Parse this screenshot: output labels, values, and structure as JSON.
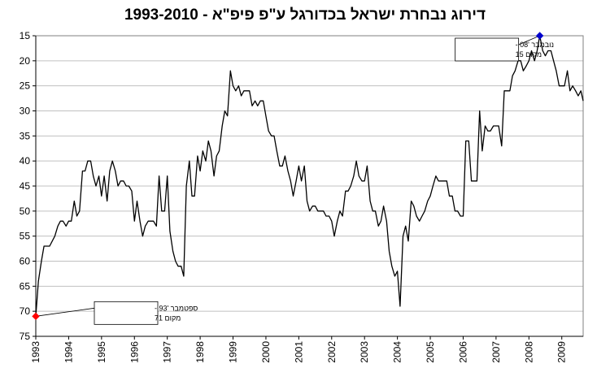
{
  "chart_data": {
    "type": "line",
    "title": "דירוג נבחרת ישראל בכדורגל ע\"פ פיפ\"א - 1993-2010",
    "xlabel": "",
    "ylabel": "",
    "y_axis": {
      "min": 15,
      "max": 75,
      "step": 5,
      "inverted": true,
      "ticks": [
        "15",
        "20",
        "25",
        "30",
        "35",
        "40",
        "45",
        "50",
        "55",
        "60",
        "65",
        "70",
        "75"
      ]
    },
    "x_axis": {
      "min": 1993.0,
      "max": 2009.65,
      "ticks": [
        "1993",
        "1994",
        "1995",
        "1996",
        "1997",
        "1998",
        "1999",
        "2000",
        "2001",
        "2002",
        "2003",
        "2004",
        "2005",
        "2006",
        "2007",
        "2008",
        "2009"
      ]
    },
    "grid": {
      "horizontal": true,
      "vertical": false
    },
    "colors": {
      "line": "#000000",
      "grid": "#c0c0c0",
      "min_marker": "#ff0000",
      "max_marker": "#0000cc"
    },
    "series": [
      {
        "points": [
          [
            1993.0,
            71
          ],
          [
            1993.08,
            64
          ],
          [
            1993.17,
            60
          ],
          [
            1993.25,
            57
          ],
          [
            1993.42,
            57
          ],
          [
            1993.58,
            55
          ],
          [
            1993.67,
            53
          ],
          [
            1993.75,
            52
          ],
          [
            1993.83,
            52
          ],
          [
            1993.92,
            53
          ],
          [
            1994.0,
            52
          ],
          [
            1994.08,
            52
          ],
          [
            1994.17,
            48
          ],
          [
            1994.25,
            51
          ],
          [
            1994.33,
            50
          ],
          [
            1994.42,
            42
          ],
          [
            1994.5,
            42
          ],
          [
            1994.58,
            40
          ],
          [
            1994.67,
            40
          ],
          [
            1994.75,
            43
          ],
          [
            1994.83,
            45
          ],
          [
            1994.92,
            43
          ],
          [
            1995.0,
            47
          ],
          [
            1995.08,
            43
          ],
          [
            1995.17,
            48
          ],
          [
            1995.25,
            42
          ],
          [
            1995.33,
            40
          ],
          [
            1995.42,
            42
          ],
          [
            1995.5,
            45
          ],
          [
            1995.58,
            44
          ],
          [
            1995.67,
            44
          ],
          [
            1995.75,
            45
          ],
          [
            1995.83,
            45
          ],
          [
            1995.92,
            46
          ],
          [
            1996.0,
            52
          ],
          [
            1996.08,
            48
          ],
          [
            1996.17,
            52
          ],
          [
            1996.25,
            55
          ],
          [
            1996.33,
            53
          ],
          [
            1996.42,
            52
          ],
          [
            1996.5,
            52
          ],
          [
            1996.58,
            52
          ],
          [
            1996.67,
            53
          ],
          [
            1996.75,
            43
          ],
          [
            1996.83,
            50
          ],
          [
            1996.92,
            50
          ],
          [
            1997.0,
            43
          ],
          [
            1997.08,
            54
          ],
          [
            1997.17,
            58
          ],
          [
            1997.25,
            60
          ],
          [
            1997.33,
            61
          ],
          [
            1997.42,
            61
          ],
          [
            1997.5,
            63
          ],
          [
            1997.58,
            45
          ],
          [
            1997.67,
            40
          ],
          [
            1997.75,
            47
          ],
          [
            1997.83,
            47
          ],
          [
            1997.92,
            39
          ],
          [
            1998.0,
            42
          ],
          [
            1998.08,
            38
          ],
          [
            1998.17,
            40
          ],
          [
            1998.25,
            36
          ],
          [
            1998.33,
            38
          ],
          [
            1998.42,
            43
          ],
          [
            1998.5,
            39
          ],
          [
            1998.58,
            38
          ],
          [
            1998.67,
            33
          ],
          [
            1998.75,
            30
          ],
          [
            1998.83,
            31
          ],
          [
            1998.92,
            22
          ],
          [
            1999.0,
            25
          ],
          [
            1999.08,
            26
          ],
          [
            1999.17,
            25
          ],
          [
            1999.25,
            27
          ],
          [
            1999.33,
            26
          ],
          [
            1999.42,
            26
          ],
          [
            1999.5,
            26
          ],
          [
            1999.58,
            29
          ],
          [
            1999.67,
            28
          ],
          [
            1999.75,
            29
          ],
          [
            1999.83,
            28
          ],
          [
            1999.92,
            28
          ],
          [
            2000.0,
            31
          ],
          [
            2000.08,
            34
          ],
          [
            2000.17,
            35
          ],
          [
            2000.25,
            35
          ],
          [
            2000.33,
            38
          ],
          [
            2000.42,
            41
          ],
          [
            2000.5,
            41
          ],
          [
            2000.58,
            39
          ],
          [
            2000.67,
            42
          ],
          [
            2000.75,
            44
          ],
          [
            2000.83,
            47
          ],
          [
            2000.92,
            44
          ],
          [
            2001.0,
            41
          ],
          [
            2001.08,
            44
          ],
          [
            2001.17,
            41
          ],
          [
            2001.25,
            48
          ],
          [
            2001.33,
            50
          ],
          [
            2001.42,
            49
          ],
          [
            2001.5,
            49
          ],
          [
            2001.58,
            50
          ],
          [
            2001.67,
            50
          ],
          [
            2001.75,
            50
          ],
          [
            2001.83,
            51
          ],
          [
            2001.92,
            51
          ],
          [
            2002.0,
            52
          ],
          [
            2002.08,
            55
          ],
          [
            2002.17,
            52
          ],
          [
            2002.25,
            50
          ],
          [
            2002.33,
            51
          ],
          [
            2002.42,
            46
          ],
          [
            2002.5,
            46
          ],
          [
            2002.58,
            45
          ],
          [
            2002.67,
            43
          ],
          [
            2002.75,
            40
          ],
          [
            2002.83,
            43
          ],
          [
            2002.92,
            44
          ],
          [
            2003.0,
            44
          ],
          [
            2003.08,
            41
          ],
          [
            2003.17,
            48
          ],
          [
            2003.25,
            50
          ],
          [
            2003.33,
            50
          ],
          [
            2003.42,
            53
          ],
          [
            2003.5,
            52
          ],
          [
            2003.58,
            49
          ],
          [
            2003.67,
            52
          ],
          [
            2003.75,
            58
          ],
          [
            2003.83,
            61
          ],
          [
            2003.92,
            63
          ],
          [
            2004.0,
            62
          ],
          [
            2004.08,
            69
          ],
          [
            2004.17,
            55
          ],
          [
            2004.25,
            53
          ],
          [
            2004.33,
            56
          ],
          [
            2004.42,
            48
          ],
          [
            2004.5,
            49
          ],
          [
            2004.58,
            51
          ],
          [
            2004.67,
            52
          ],
          [
            2004.75,
            51
          ],
          [
            2004.83,
            50
          ],
          [
            2004.92,
            48
          ],
          [
            2005.0,
            47
          ],
          [
            2005.08,
            45
          ],
          [
            2005.17,
            43
          ],
          [
            2005.25,
            44
          ],
          [
            2005.33,
            44
          ],
          [
            2005.42,
            44
          ],
          [
            2005.5,
            44
          ],
          [
            2005.58,
            47
          ],
          [
            2005.67,
            47
          ],
          [
            2005.75,
            50
          ],
          [
            2005.83,
            50
          ],
          [
            2005.92,
            51
          ],
          [
            2006.0,
            51
          ],
          [
            2006.08,
            36
          ],
          [
            2006.17,
            36
          ],
          [
            2006.25,
            44
          ],
          [
            2006.33,
            44
          ],
          [
            2006.42,
            44
          ],
          [
            2006.5,
            30
          ],
          [
            2006.58,
            38
          ],
          [
            2006.67,
            33
          ],
          [
            2006.75,
            34
          ],
          [
            2006.83,
            34
          ],
          [
            2006.92,
            33
          ],
          [
            2007.0,
            33
          ],
          [
            2007.08,
            33
          ],
          [
            2007.17,
            37
          ],
          [
            2007.25,
            26
          ],
          [
            2007.33,
            26
          ],
          [
            2007.42,
            26
          ],
          [
            2007.5,
            23
          ],
          [
            2007.58,
            22
          ],
          [
            2007.67,
            20
          ],
          [
            2007.75,
            20
          ],
          [
            2007.83,
            22
          ],
          [
            2007.92,
            21
          ],
          [
            2008.0,
            20
          ],
          [
            2008.08,
            18
          ],
          [
            2008.17,
            20
          ],
          [
            2008.25,
            18
          ],
          [
            2008.33,
            15
          ],
          [
            2008.42,
            18
          ],
          [
            2008.5,
            19
          ],
          [
            2008.58,
            18
          ],
          [
            2008.67,
            18
          ],
          [
            2008.75,
            20
          ],
          [
            2008.83,
            22
          ],
          [
            2008.92,
            25
          ],
          [
            2009.0,
            25
          ],
          [
            2009.08,
            25
          ],
          [
            2009.17,
            22
          ],
          [
            2009.25,
            26
          ],
          [
            2009.33,
            25
          ],
          [
            2009.42,
            26
          ],
          [
            2009.5,
            27
          ],
          [
            2009.58,
            26
          ],
          [
            2009.65,
            28
          ]
        ]
      }
    ],
    "annotations": [
      {
        "x": 1993.0,
        "y": 71,
        "marker": "min",
        "line1": "ספטמבר '93 -",
        "line2": "מקום 71"
      },
      {
        "x": 2008.33,
        "y": 15,
        "marker": "max",
        "line1": "נובמבר '08 -",
        "line2": "מקום 15"
      }
    ]
  }
}
